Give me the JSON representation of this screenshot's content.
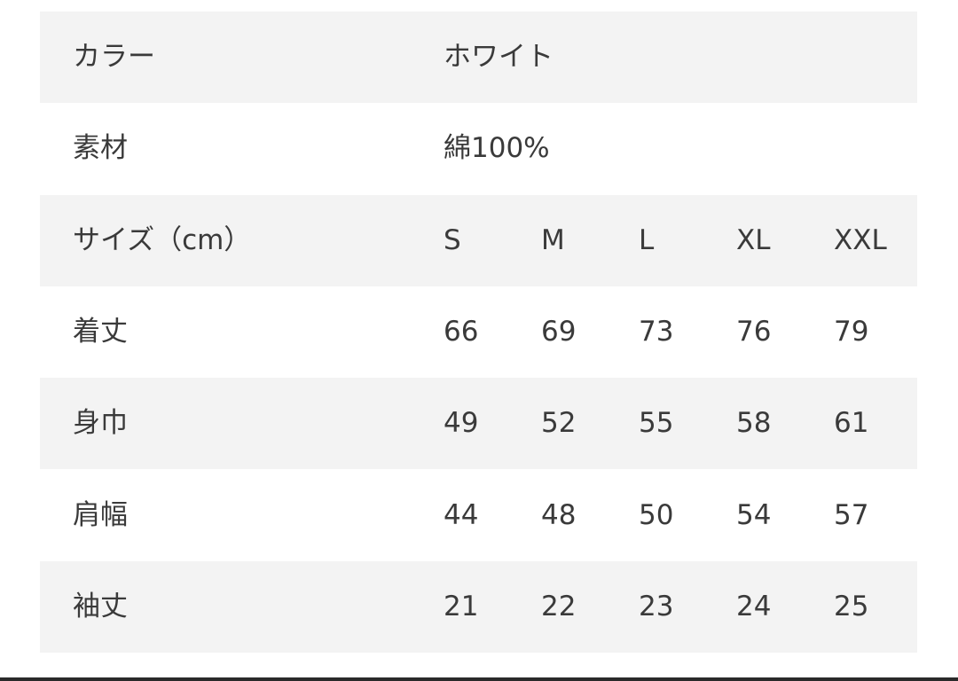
{
  "table": {
    "rows": [
      [
        "カラー",
        "ホワイト"
      ],
      [
        "素材",
        "綿100%"
      ],
      [
        "サイズ（cm）",
        "S",
        "M",
        "L",
        "XL",
        "XXL"
      ],
      [
        "着丈",
        "66",
        "69",
        "73",
        "76",
        "79"
      ],
      [
        "身巾",
        "49",
        "52",
        "55",
        "58",
        "61"
      ],
      [
        "肩幅",
        "44",
        "48",
        "50",
        "54",
        "57"
      ],
      [
        "袖丈",
        "21",
        "22",
        "23",
        "24",
        "25"
      ]
    ]
  }
}
